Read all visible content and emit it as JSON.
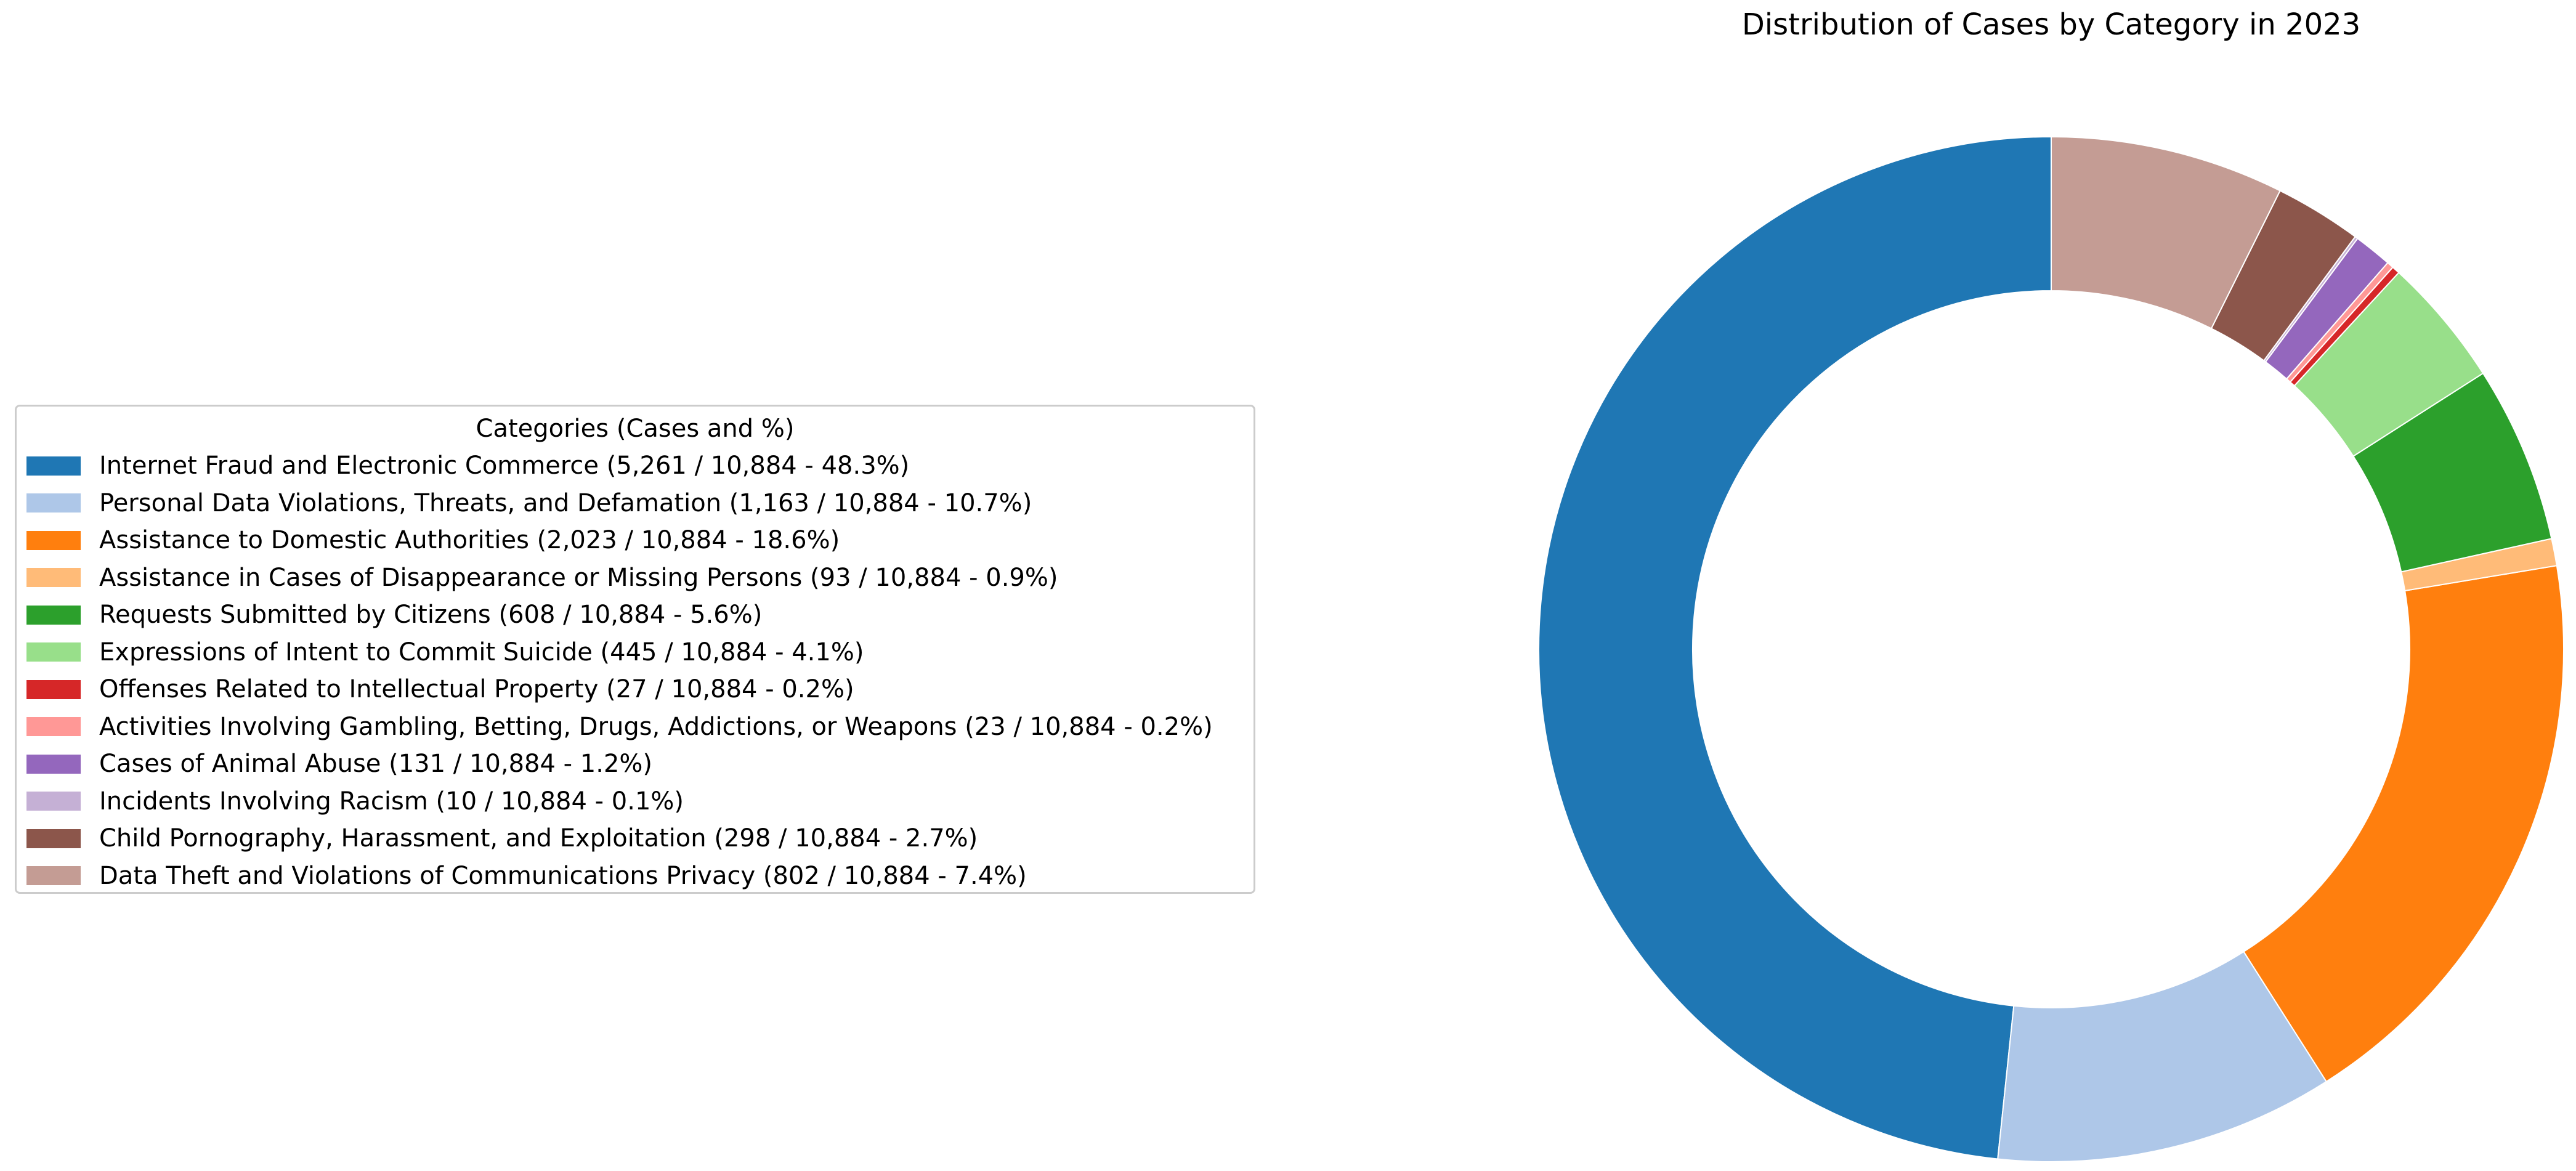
{
  "chart_data": {
    "type": "pie",
    "variant": "donut",
    "title": "Distribution of Cases by Category in 2023",
    "legend": {
      "title": "Categories (Cases and %)",
      "placement": "left"
    },
    "total": 10884,
    "slices": [
      {
        "name": "Internet Fraud and Electronic Commerce",
        "value": 5261,
        "percent": 48.3,
        "label": "Internet Fraud and Electronic Commerce (5,261 / 10,884 - 48.3%)",
        "color": "#1f77b4"
      },
      {
        "name": "Personal Data Violations, Threats, and Defamation",
        "value": 1163,
        "percent": 10.7,
        "label": "Personal Data Violations, Threats, and Defamation (1,163 / 10,884 - 10.7%)",
        "color": "#aec7e8"
      },
      {
        "name": "Assistance to Domestic Authorities",
        "value": 2023,
        "percent": 18.6,
        "label": "Assistance to Domestic Authorities (2,023 / 10,884 - 18.6%)",
        "color": "#ff7f0e"
      },
      {
        "name": "Assistance in Cases of Disappearance or Missing Persons",
        "value": 93,
        "percent": 0.9,
        "label": "Assistance in Cases of Disappearance or Missing Persons (93 / 10,884 - 0.9%)",
        "color": "#ffbb78"
      },
      {
        "name": "Requests Submitted by Citizens",
        "value": 608,
        "percent": 5.6,
        "label": "Requests Submitted by Citizens (608 / 10,884 - 5.6%)",
        "color": "#2ca02c"
      },
      {
        "name": "Expressions of Intent to Commit Suicide",
        "value": 445,
        "percent": 4.1,
        "label": "Expressions of Intent to Commit Suicide (445 / 10,884 - 4.1%)",
        "color": "#98df8a"
      },
      {
        "name": "Offenses Related to Intellectual Property",
        "value": 27,
        "percent": 0.2,
        "label": "Offenses Related to Intellectual Property (27 / 10,884 - 0.2%)",
        "color": "#d62728"
      },
      {
        "name": "Activities Involving Gambling, Betting, Drugs, Addictions, or Weapons",
        "value": 23,
        "percent": 0.2,
        "label": "Activities Involving Gambling, Betting, Drugs, Addictions, or Weapons (23 / 10,884 - 0.2%)",
        "color": "#ff9896"
      },
      {
        "name": "Cases of Animal Abuse",
        "value": 131,
        "percent": 1.2,
        "label": "Cases of Animal Abuse (131 / 10,884 - 1.2%)",
        "color": "#9467bd"
      },
      {
        "name": "Incidents Involving Racism",
        "value": 10,
        "percent": 0.1,
        "label": "Incidents Involving Racism (10 / 10,884 - 0.1%)",
        "color": "#c5b0d5"
      },
      {
        "name": "Child Pornography, Harassment, and Exploitation",
        "value": 298,
        "percent": 2.7,
        "label": "Child Pornography, Harassment, and Exploitation (298 / 10,884 - 2.7%)",
        "color": "#8c564b"
      },
      {
        "name": "Data Theft and Violations of Communications Privacy",
        "value": 802,
        "percent": 7.4,
        "label": "Data Theft and Violations of Communications Privacy (802 / 10,884 - 7.4%)",
        "color": "#c49c94"
      }
    ]
  }
}
